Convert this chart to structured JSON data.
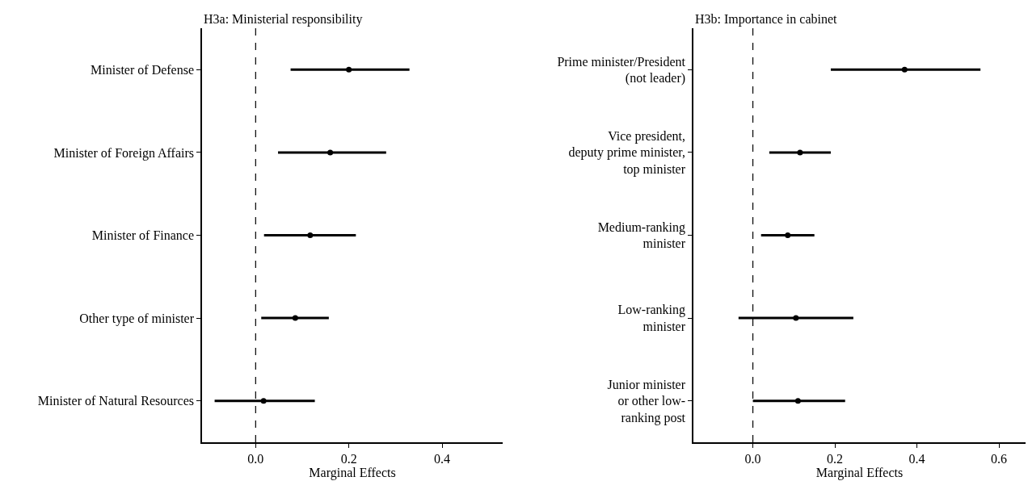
{
  "chart_data": [
    {
      "type": "scatter",
      "orientation": "horizontal",
      "title": "H3a: Ministerial responsibility",
      "xlabel": "Marginal Effects",
      "categories": [
        "Minister of Defense",
        "Minister of Foreign Affairs",
        "Minister of Finance",
        "Other type of minister",
        "Minister of Natural Resources"
      ],
      "series": [
        {
          "color": "#000000",
          "values": [
            0.2,
            0.16,
            0.117,
            0.085,
            0.017
          ],
          "errors": [
            [
              0.075,
              0.33
            ],
            [
              0.048,
              0.28
            ],
            [
              0.018,
              0.215
            ],
            [
              0.012,
              0.157
            ],
            [
              -0.088,
              0.127
            ]
          ]
        }
      ],
      "xlim": [
        -0.115,
        0.53
      ],
      "xticks": [
        {
          "value": 0,
          "label": "0.0"
        },
        0.2,
        0.4
      ],
      "marker": "circle",
      "ref_lines": [
        {
          "axis": "x",
          "value": 0,
          "line_style": "dashed",
          "color": "#000000"
        }
      ]
    },
    {
      "type": "scatter",
      "orientation": "horizontal",
      "title": "H3b: Importance in cabinet",
      "xlabel": "Marginal Effects",
      "categories": [
        "Prime minister/President\n(not leader)",
        "Vice president,\ndeputy prime minister,\ntop minister",
        "Medium-ranking\nminister",
        "Low-ranking\nminister",
        "Junior minister\nor other low-\nranking post"
      ],
      "series": [
        {
          "color": "#000000",
          "values": [
            0.37,
            0.115,
            0.085,
            0.105,
            0.11
          ],
          "errors": [
            [
              0.19,
              0.555
            ],
            [
              0.04,
              0.19
            ],
            [
              0.02,
              0.15
            ],
            [
              -0.035,
              0.245
            ],
            [
              0.0,
              0.225
            ]
          ]
        }
      ],
      "xlim": [
        -0.145,
        0.665
      ],
      "xticks": [
        {
          "value": 0,
          "label": "0.0"
        },
        0.2,
        0.4,
        0.6
      ],
      "marker": "circle",
      "ref_lines": [
        {
          "axis": "x",
          "value": 0,
          "line_style": "dashed",
          "color": "#000000"
        }
      ]
    }
  ]
}
